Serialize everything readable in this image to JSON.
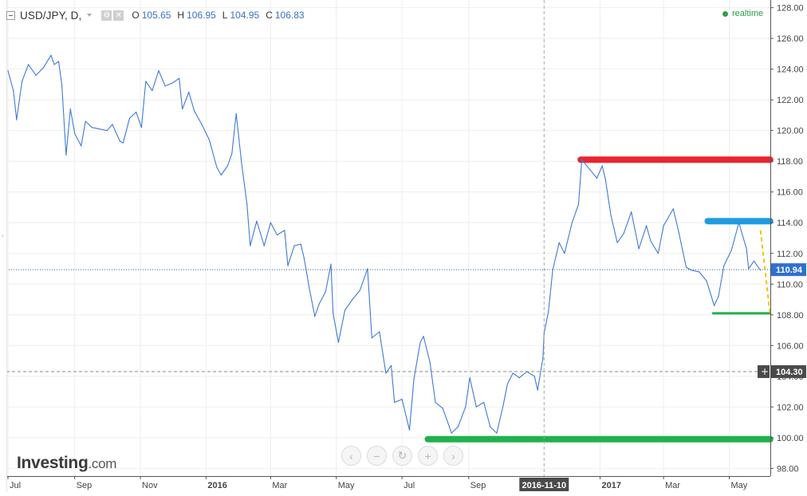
{
  "legend": {
    "symbol": "USD/JPY, D,",
    "open_label": "O",
    "open": "105.65",
    "high_label": "H",
    "high": "106.95",
    "low_label": "L",
    "low": "104.95",
    "close_label": "C",
    "close": "106.83"
  },
  "realtime_label": "realtime",
  "logo": {
    "brand": "Investing",
    "suffix": ".com"
  },
  "nav_buttons": [
    {
      "name": "scroll-left-button",
      "icon": "chevron-left-icon",
      "glyph": "‹"
    },
    {
      "name": "zoom-out-button",
      "icon": "minus-icon",
      "glyph": "−"
    },
    {
      "name": "reset-button",
      "icon": "refresh-icon",
      "glyph": "↻"
    },
    {
      "name": "zoom-in-button",
      "icon": "plus-icon",
      "glyph": "+"
    },
    {
      "name": "scroll-right-button",
      "icon": "chevron-right-icon",
      "glyph": "›"
    }
  ],
  "colors": {
    "line": "#3f7ad6",
    "red_level": "#e8262d",
    "blue_level": "#1e9be0",
    "green_level": "#22b14c",
    "yellow_trend": "#f2c200",
    "price_label_bg": "#2f6fd0",
    "crosshair_label_bg": "#4a4a4a"
  },
  "chart_data": {
    "type": "line",
    "title": "USD/JPY, D,",
    "xlabel": "",
    "ylabel": "",
    "x_start": "2015-07-01",
    "x_end": "2017-05-31",
    "ylim": [
      97.5,
      128.5
    ],
    "yticks": [
      98.0,
      100.0,
      102.0,
      104.0,
      106.0,
      108.0,
      110.0,
      112.0,
      114.0,
      116.0,
      118.0,
      120.0,
      122.0,
      124.0,
      126.0,
      128.0
    ],
    "xticks": [
      {
        "label": "Jul",
        "date": "2015-07-01"
      },
      {
        "label": "Sep",
        "date": "2015-09-01"
      },
      {
        "label": "Nov",
        "date": "2015-11-01"
      },
      {
        "label": "2016",
        "date": "2016-01-01",
        "bold": true
      },
      {
        "label": "Mar",
        "date": "2016-03-01"
      },
      {
        "label": "May",
        "date": "2016-05-01"
      },
      {
        "label": "Jul",
        "date": "2016-07-01"
      },
      {
        "label": "Sep",
        "date": "2016-09-01"
      },
      {
        "label": "2017",
        "date": "2017-01-01",
        "bold": true
      },
      {
        "label": "Mar",
        "date": "2017-03-01"
      },
      {
        "label": "May",
        "date": "2017-05-01"
      }
    ],
    "series": [
      {
        "name": "USD/JPY",
        "points": [
          [
            "2015-07-01",
            123.9
          ],
          [
            "2015-07-06",
            122.6
          ],
          [
            "2015-07-09",
            120.7
          ],
          [
            "2015-07-14",
            123.2
          ],
          [
            "2015-07-20",
            124.3
          ],
          [
            "2015-07-27",
            123.6
          ],
          [
            "2015-08-03",
            124.1
          ],
          [
            "2015-08-10",
            124.9
          ],
          [
            "2015-08-13",
            124.3
          ],
          [
            "2015-08-17",
            124.5
          ],
          [
            "2015-08-20",
            123.0
          ],
          [
            "2015-08-24",
            118.4
          ],
          [
            "2015-08-28",
            121.4
          ],
          [
            "2015-09-01",
            119.8
          ],
          [
            "2015-09-07",
            119.0
          ],
          [
            "2015-09-11",
            120.6
          ],
          [
            "2015-09-17",
            120.2
          ],
          [
            "2015-09-24",
            120.1
          ],
          [
            "2015-10-01",
            120.0
          ],
          [
            "2015-10-06",
            120.4
          ],
          [
            "2015-10-13",
            119.3
          ],
          [
            "2015-10-16",
            119.2
          ],
          [
            "2015-10-22",
            120.8
          ],
          [
            "2015-10-28",
            121.2
          ],
          [
            "2015-11-02",
            120.2
          ],
          [
            "2015-11-06",
            123.2
          ],
          [
            "2015-11-12",
            122.6
          ],
          [
            "2015-11-18",
            123.9
          ],
          [
            "2015-11-24",
            122.9
          ],
          [
            "2015-12-01",
            123.1
          ],
          [
            "2015-12-07",
            123.4
          ],
          [
            "2015-12-10",
            121.4
          ],
          [
            "2015-12-16",
            122.5
          ],
          [
            "2015-12-21",
            121.3
          ],
          [
            "2015-12-28",
            120.4
          ],
          [
            "2016-01-04",
            119.4
          ],
          [
            "2016-01-11",
            117.6
          ],
          [
            "2016-01-15",
            117.1
          ],
          [
            "2016-01-21",
            117.7
          ],
          [
            "2016-01-25",
            118.5
          ],
          [
            "2016-01-29",
            121.1
          ],
          [
            "2016-02-03",
            117.9
          ],
          [
            "2016-02-08",
            115.2
          ],
          [
            "2016-02-11",
            112.5
          ],
          [
            "2016-02-17",
            114.1
          ],
          [
            "2016-02-24",
            112.5
          ],
          [
            "2016-03-01",
            114.0
          ],
          [
            "2016-03-07",
            113.2
          ],
          [
            "2016-03-14",
            113.5
          ],
          [
            "2016-03-17",
            111.2
          ],
          [
            "2016-03-23",
            112.5
          ],
          [
            "2016-03-29",
            112.6
          ],
          [
            "2016-04-01",
            111.7
          ],
          [
            "2016-04-06",
            109.7
          ],
          [
            "2016-04-11",
            107.9
          ],
          [
            "2016-04-15",
            108.7
          ],
          [
            "2016-04-21",
            109.5
          ],
          [
            "2016-04-26",
            111.3
          ],
          [
            "2016-04-28",
            108.1
          ],
          [
            "2016-05-03",
            106.2
          ],
          [
            "2016-05-09",
            108.3
          ],
          [
            "2016-05-16",
            109.0
          ],
          [
            "2016-05-23",
            109.6
          ],
          [
            "2016-05-30",
            111.0
          ],
          [
            "2016-06-03",
            106.5
          ],
          [
            "2016-06-10",
            106.9
          ],
          [
            "2016-06-16",
            104.2
          ],
          [
            "2016-06-21",
            104.7
          ],
          [
            "2016-06-24",
            102.3
          ],
          [
            "2016-07-01",
            102.5
          ],
          [
            "2016-07-08",
            100.5
          ],
          [
            "2016-07-12",
            103.8
          ],
          [
            "2016-07-18",
            106.2
          ],
          [
            "2016-07-21",
            106.6
          ],
          [
            "2016-07-27",
            104.9
          ],
          [
            "2016-08-01",
            102.3
          ],
          [
            "2016-08-08",
            101.9
          ],
          [
            "2016-08-16",
            100.3
          ],
          [
            "2016-08-22",
            100.7
          ],
          [
            "2016-08-29",
            102.0
          ],
          [
            "2016-09-02",
            103.9
          ],
          [
            "2016-09-08",
            102.0
          ],
          [
            "2016-09-15",
            102.3
          ],
          [
            "2016-09-21",
            100.7
          ],
          [
            "2016-09-27",
            100.3
          ],
          [
            "2016-10-03",
            102.1
          ],
          [
            "2016-10-07",
            103.5
          ],
          [
            "2016-10-12",
            104.2
          ],
          [
            "2016-10-18",
            103.9
          ],
          [
            "2016-10-25",
            104.3
          ],
          [
            "2016-11-01",
            104.0
          ],
          [
            "2016-11-04",
            103.1
          ],
          [
            "2016-11-09",
            105.2
          ],
          [
            "2016-11-10",
            106.8
          ],
          [
            "2016-11-14",
            108.2
          ],
          [
            "2016-11-18",
            110.9
          ],
          [
            "2016-11-24",
            112.7
          ],
          [
            "2016-11-29",
            112.0
          ],
          [
            "2016-12-06",
            114.0
          ],
          [
            "2016-12-12",
            115.2
          ],
          [
            "2016-12-15",
            118.1
          ],
          [
            "2016-12-22",
            117.5
          ],
          [
            "2016-12-29",
            116.9
          ],
          [
            "2017-01-03",
            117.7
          ],
          [
            "2017-01-06",
            116.8
          ],
          [
            "2017-01-11",
            114.5
          ],
          [
            "2017-01-17",
            112.7
          ],
          [
            "2017-01-23",
            113.3
          ],
          [
            "2017-01-30",
            114.7
          ],
          [
            "2017-02-06",
            112.3
          ],
          [
            "2017-02-13",
            113.8
          ],
          [
            "2017-02-17",
            112.8
          ],
          [
            "2017-02-24",
            112.0
          ],
          [
            "2017-03-01",
            113.8
          ],
          [
            "2017-03-10",
            114.9
          ],
          [
            "2017-03-15",
            113.4
          ],
          [
            "2017-03-22",
            111.1
          ],
          [
            "2017-03-27",
            110.9
          ],
          [
            "2017-04-03",
            110.8
          ],
          [
            "2017-04-10",
            110.2
          ],
          [
            "2017-04-17",
            108.6
          ],
          [
            "2017-04-21",
            109.2
          ],
          [
            "2017-04-26",
            111.2
          ],
          [
            "2017-05-03",
            112.2
          ],
          [
            "2017-05-10",
            114.0
          ],
          [
            "2017-05-17",
            112.3
          ],
          [
            "2017-05-19",
            111.0
          ],
          [
            "2017-05-24",
            111.5
          ],
          [
            "2017-05-30",
            110.9
          ]
        ]
      }
    ],
    "levels": [
      {
        "name": "red-resistance-line",
        "y": 118.1,
        "x_from": "2016-12-14",
        "x_to": "2017-06-08",
        "color": "#e8262d",
        "width": 8
      },
      {
        "name": "blue-resistance-line",
        "y": 114.1,
        "x_from": "2017-04-11",
        "x_to": "2017-06-08",
        "color": "#1e9be0",
        "width": 8
      },
      {
        "name": "green-support-line",
        "y": 108.1,
        "x_from": "2017-04-16",
        "x_to": "2017-06-08",
        "color": "#22b14c",
        "width": 3
      },
      {
        "name": "green-bottom-line",
        "y": 99.9,
        "x_from": "2016-07-25",
        "x_to": "2017-06-08",
        "color": "#22b14c",
        "width": 8
      }
    ],
    "trend_line": {
      "name": "yellow-dashed-trend-line",
      "from": [
        "2017-05-30",
        113.5
      ],
      "to": [
        "2017-06-08",
        108.0
      ],
      "color": "#f2c200"
    },
    "current_price": {
      "value": 110.94,
      "label": "110.94"
    },
    "crosshair": {
      "price": 104.3,
      "price_label": "104.30",
      "date": "2016-11-10",
      "date_label": "2016-11-10"
    }
  }
}
